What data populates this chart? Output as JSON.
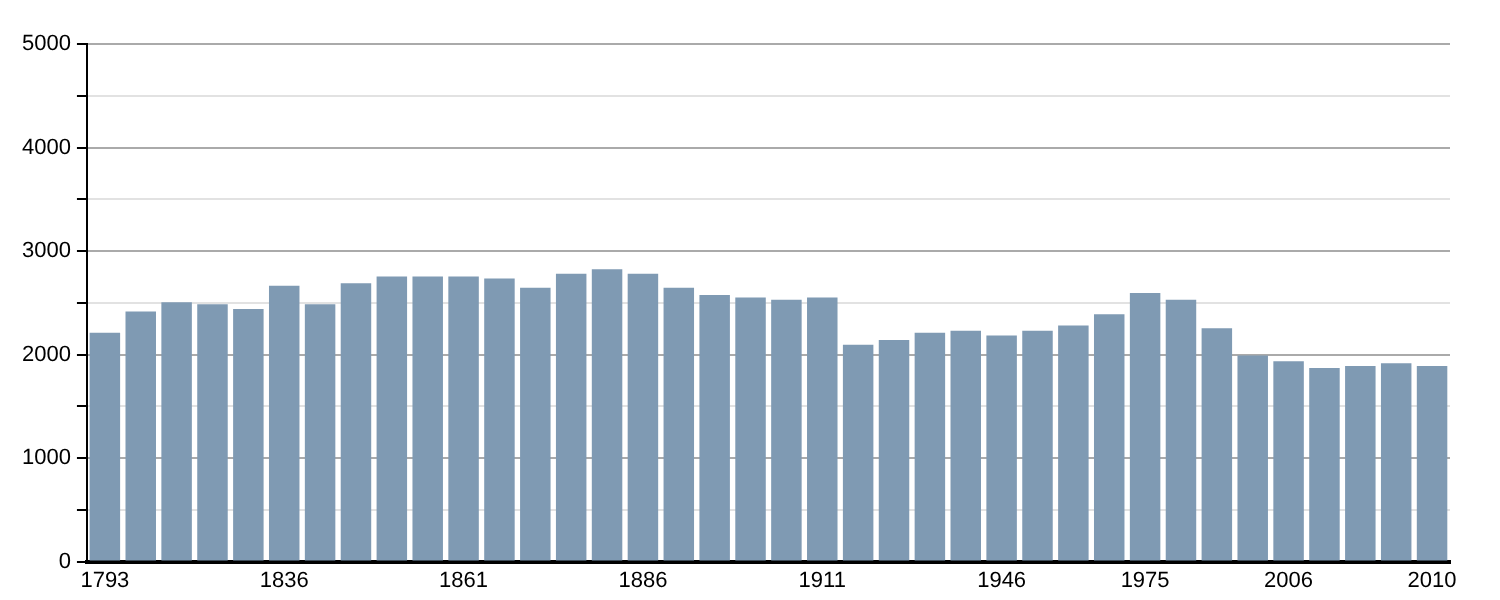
{
  "chart_data": {
    "type": "bar",
    "categories": [
      "1793",
      null,
      null,
      null,
      null,
      "1836",
      null,
      null,
      null,
      null,
      "1861",
      null,
      null,
      null,
      null,
      "1886",
      null,
      null,
      null,
      null,
      "1911",
      null,
      null,
      null,
      null,
      "1946",
      null,
      null,
      null,
      "1975",
      null,
      null,
      null,
      "2006",
      null,
      null,
      null,
      "2010"
    ],
    "values": [
      2210,
      2415,
      2505,
      2485,
      2440,
      2665,
      2485,
      2690,
      2755,
      2755,
      2755,
      2735,
      2645,
      2780,
      2825,
      2780,
      2645,
      2575,
      2550,
      2530,
      2550,
      2095,
      2140,
      2210,
      2230,
      2185,
      2230,
      2280,
      2390,
      2595,
      2530,
      2255,
      1990,
      1935,
      1870,
      1890,
      1915,
      1890
    ],
    "color": "#7f9ab3",
    "ylim": [
      0,
      5000
    ],
    "yticks": [
      0,
      {
        "value": 500,
        "label": null
      },
      1000,
      {
        "value": 1500,
        "label": null
      },
      2000,
      {
        "value": 2500,
        "label": null
      },
      3000,
      {
        "value": 3500,
        "label": null
      },
      4000,
      {
        "value": 4500,
        "label": null
      },
      5000
    ],
    "grid": "y"
  }
}
